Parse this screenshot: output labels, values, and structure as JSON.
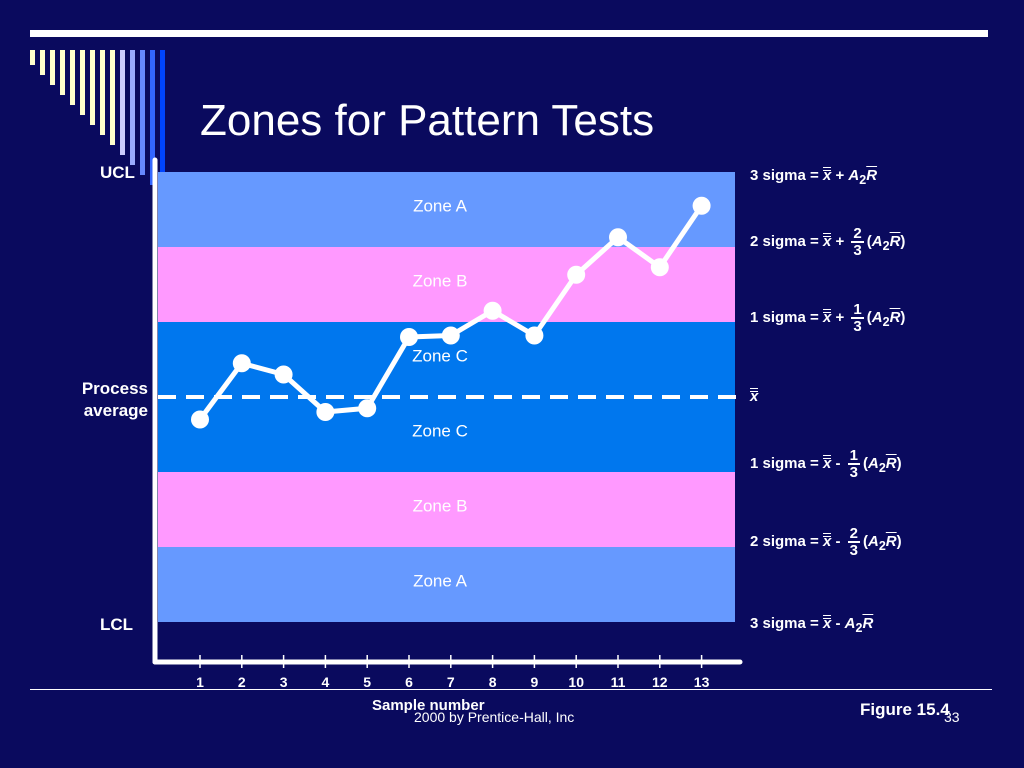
{
  "slide": {
    "title": "Zones for Pattern Tests",
    "copyright": "2000 by Prentice-Hall, Inc",
    "page_number": "33",
    "figure": "Figure 15.4"
  },
  "chart_data": {
    "type": "line",
    "xlabel": "Sample number",
    "ylabel": "",
    "x": [
      1,
      2,
      3,
      4,
      5,
      6,
      7,
      8,
      9,
      10,
      11,
      12,
      13
    ],
    "y": [
      -0.3,
      0.45,
      0.3,
      -0.2,
      -0.15,
      0.8,
      0.82,
      1.15,
      0.82,
      1.63,
      2.13,
      1.73,
      2.55
    ],
    "ylim": [
      -3,
      3
    ],
    "units": "sigma",
    "center_line_label": [
      "Process",
      "average"
    ],
    "ucl_label": "UCL",
    "lcl_label": "LCL",
    "zones": [
      {
        "name": "Zone A",
        "from": 2,
        "to": 3,
        "color": "#6699ff"
      },
      {
        "name": "Zone B",
        "from": 1,
        "to": 2,
        "color": "#ff99ff"
      },
      {
        "name": "Zone C",
        "from": 0,
        "to": 1,
        "color": "#0077ee"
      },
      {
        "name": "Zone C",
        "from": -1,
        "to": 0,
        "color": "#0077ee"
      },
      {
        "name": "Zone B",
        "from": -2,
        "to": -1,
        "color": "#ff99ff"
      },
      {
        "name": "Zone A",
        "from": -3,
        "to": -2,
        "color": "#6699ff"
      }
    ],
    "formulas": {
      "plus3": "3 sigma =",
      "plus2": "2 sigma =",
      "plus1": "1 sigma =",
      "minus1": "1 sigma =",
      "minus2": "2 sigma =",
      "minus3": "3 sigma ="
    },
    "colors": {
      "background": "#0a0a5e",
      "line": "#ffffff",
      "zone_text": "#ffffff"
    }
  }
}
